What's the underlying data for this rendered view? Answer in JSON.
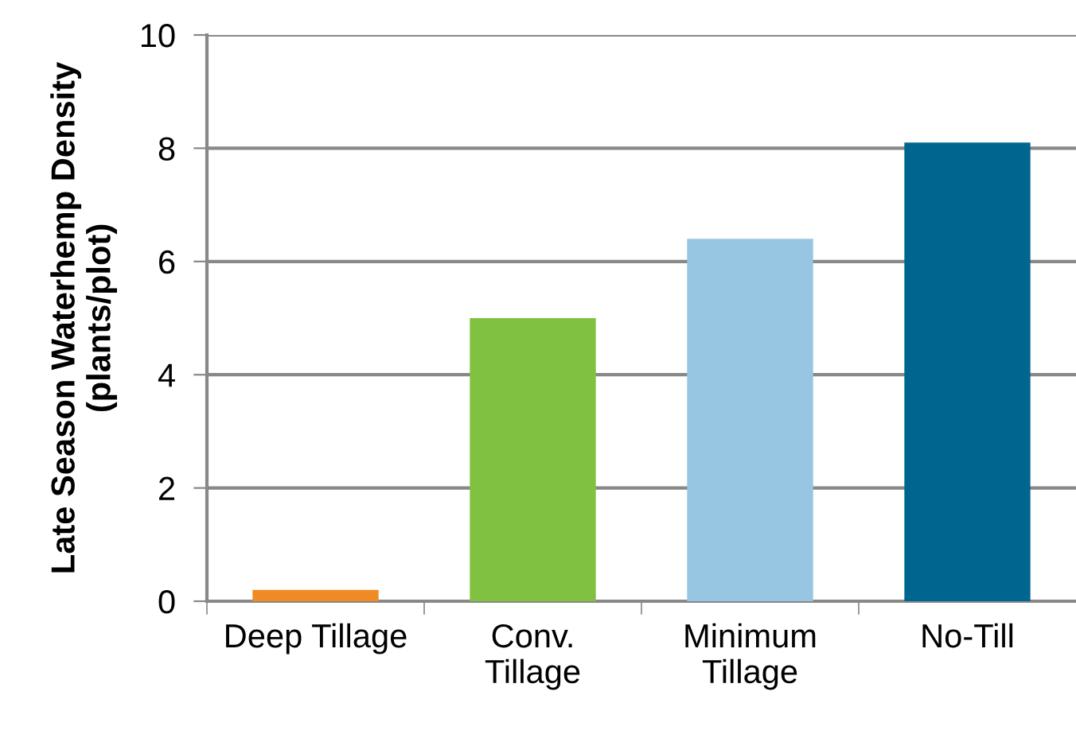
{
  "chart_data": {
    "type": "bar",
    "ylabel": "Late Season Waterhemp Density\n(plants/plot)",
    "categories": [
      "Deep Tillage",
      "Conv.\nTillage",
      "Minimum\nTillage",
      "No-Till"
    ],
    "values": [
      0.2,
      5.0,
      6.4,
      8.1
    ],
    "colors": [
      "#f08a24",
      "#80c141",
      "#96c6e2",
      "#006690"
    ],
    "ylim": [
      0,
      10
    ],
    "yticks": [
      0,
      2,
      4,
      6,
      8,
      10
    ],
    "grid": "y"
  }
}
